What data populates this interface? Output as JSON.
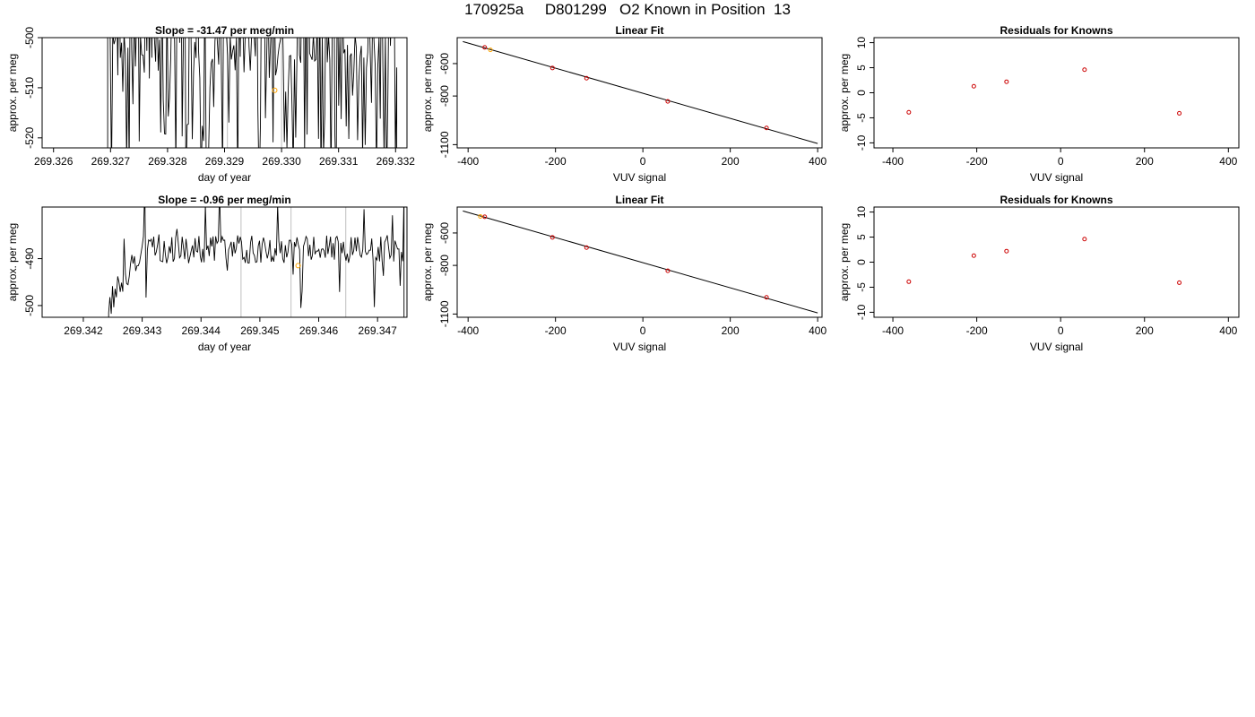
{
  "page_title": "170925a     D801299   O2 Known in Position  13",
  "colors": {
    "trace": "#000000",
    "marker": "#cc0000",
    "highlight": "#ffa500",
    "vline": "#bebebe",
    "frame": "#000000"
  },
  "chart_data": [
    {
      "type": "line",
      "title": "Slope =  -31.47  per meg/min",
      "xlabel": "day of year",
      "ylabel": "approx. per meg",
      "xlim": [
        269.3258,
        269.3322
      ],
      "ylim": [
        -522,
        -500
      ],
      "xticks": [
        269.326,
        269.327,
        269.328,
        269.329,
        269.33,
        269.331,
        269.332
      ],
      "xtick_labels": [
        "269.326",
        "269.327",
        "269.328",
        "269.329",
        "269.330",
        "269.331",
        "269.332"
      ],
      "yticks": [
        -520,
        -510,
        -500
      ],
      "ytick_labels": [
        "-520",
        "-510",
        "-500"
      ],
      "t0": 269.32695,
      "t1": 269.33202,
      "vlines": [
        269.32905,
        269.33
      ],
      "highlight_point": [
        269.32988,
        -510.5
      ],
      "noise": {
        "base": -503,
        "amp": 25,
        "seed": 7,
        "n": 230
      }
    },
    {
      "type": "scatter",
      "title": "Linear Fit",
      "xlabel": "VUV signal",
      "ylabel": "approx. per meg",
      "xlim": [
        -425,
        410
      ],
      "ylim": [
        -1120,
        -440
      ],
      "xticks": [
        -400,
        -200,
        0,
        200,
        400
      ],
      "xtick_labels": [
        "-400",
        "-200",
        "0",
        "200",
        "400"
      ],
      "yticks": [
        -1100,
        -800,
        -600
      ],
      "ytick_labels": [
        "-1100",
        "-800",
        "-600"
      ],
      "x": [
        -362,
        -207,
        -129,
        57,
        283
      ],
      "y": [
        -500,
        -627,
        -690,
        -833,
        -997
      ],
      "highlight_x": [
        -349
      ],
      "highlight_y": [
        -515
      ],
      "fit_line": [
        [
          -412,
          -464
        ],
        [
          400,
          -1093
        ]
      ]
    },
    {
      "type": "scatter",
      "title": "Residuals for Knowns",
      "xlabel": "VUV signal",
      "ylabel": "approx. per meg",
      "xlim": [
        -445,
        425
      ],
      "ylim": [
        -11,
        11
      ],
      "xticks": [
        -400,
        -200,
        0,
        200,
        400
      ],
      "xtick_labels": [
        "-400",
        "-200",
        "0",
        "200",
        "400"
      ],
      "yticks": [
        -10,
        -5,
        0,
        5,
        10
      ],
      "ytick_labels": [
        "-10",
        "-5",
        "0",
        "5",
        "10"
      ],
      "x": [
        -362,
        -207,
        -129,
        57,
        283
      ],
      "y": [
        -3.9,
        1.3,
        2.2,
        4.6,
        -4.1
      ]
    },
    {
      "type": "line",
      "title": "Slope =  -0.96  per meg/min",
      "xlabel": "day of year",
      "ylabel": "approx. per meg",
      "xlim": [
        269.3413,
        269.3475
      ],
      "ylim": [
        -502.5,
        -479
      ],
      "xticks": [
        269.342,
        269.343,
        269.344,
        269.345,
        269.346,
        269.347
      ],
      "xtick_labels": [
        "269.342",
        "269.343",
        "269.344",
        "269.345",
        "269.346",
        "269.347"
      ],
      "yticks": [
        -500,
        -490
      ],
      "ytick_labels": [
        "-500",
        "-490"
      ],
      "t0": 269.34243,
      "t1": 269.34745,
      "vlines": [
        269.34468,
        269.34553,
        269.34646
      ],
      "highlight_point": [
        269.34565,
        -491.5
      ],
      "noise": {
        "base": -488,
        "amp": 3,
        "seed": 13,
        "n": 230
      }
    },
    {
      "type": "scatter",
      "title": "Linear Fit",
      "xlabel": "VUV signal",
      "ylabel": "approx. per meg",
      "xlim": [
        -425,
        410
      ],
      "ylim": [
        -1120,
        -440
      ],
      "xticks": [
        -400,
        -200,
        0,
        200,
        400
      ],
      "xtick_labels": [
        "-400",
        "-200",
        "0",
        "200",
        "400"
      ],
      "yticks": [
        -1100,
        -800,
        -600
      ],
      "ytick_labels": [
        "-1100",
        "-800",
        "-600"
      ],
      "x": [
        -362,
        -207,
        -129,
        57,
        283
      ],
      "y": [
        -500,
        -627,
        -690,
        -833,
        -997
      ],
      "highlight_x": [
        -372
      ],
      "highlight_y": [
        -498
      ],
      "fit_line": [
        [
          -412,
          -464
        ],
        [
          400,
          -1093
        ]
      ]
    },
    {
      "type": "scatter",
      "title": "Residuals for Knowns",
      "xlabel": "VUV signal",
      "ylabel": "approx. per meg",
      "xlim": [
        -445,
        425
      ],
      "ylim": [
        -11,
        11
      ],
      "xticks": [
        -400,
        -200,
        0,
        200,
        400
      ],
      "xtick_labels": [
        "-400",
        "-200",
        "0",
        "200",
        "400"
      ],
      "yticks": [
        -10,
        -5,
        0,
        5,
        10
      ],
      "ytick_labels": [
        "-10",
        "-5",
        "0",
        "5",
        "10"
      ],
      "x": [
        -362,
        -207,
        -129,
        57,
        283
      ],
      "y": [
        -3.9,
        1.3,
        2.2,
        4.6,
        -4.1
      ]
    }
  ]
}
